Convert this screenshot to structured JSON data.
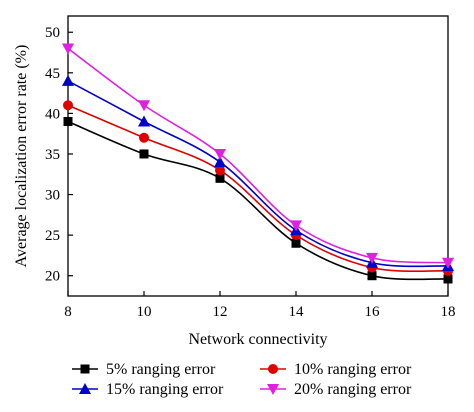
{
  "chart_data": {
    "type": "line",
    "title": "",
    "xlabel": "Network connectivity",
    "ylabel": "Average localization error rate (%)",
    "xlim": [
      8,
      18
    ],
    "ylim": [
      17.5,
      52
    ],
    "xticks": [
      8,
      10,
      12,
      14,
      16,
      18
    ],
    "yticks": [
      20,
      25,
      30,
      35,
      40,
      45,
      50
    ],
    "grid": false,
    "legend_position": "bottom",
    "x": [
      8,
      10,
      12,
      14,
      16,
      18
    ],
    "series": [
      {
        "name": "5% ranging error",
        "values": [
          39,
          35,
          32,
          24,
          20,
          19.6
        ],
        "color": "#000000",
        "marker": "square"
      },
      {
        "name": "10% ranging error",
        "values": [
          41,
          37,
          33,
          25,
          21,
          20.6
        ],
        "color": "#e00000",
        "marker": "circle"
      },
      {
        "name": "15% ranging error",
        "values": [
          44,
          39,
          34,
          25.6,
          21.6,
          21.2
        ],
        "color": "#0000cc",
        "marker": "triangle-up"
      },
      {
        "name": "20% ranging error",
        "values": [
          48,
          41,
          35,
          26.2,
          22.2,
          21.6
        ],
        "color": "#e020e0",
        "marker": "triangle-down"
      }
    ]
  }
}
